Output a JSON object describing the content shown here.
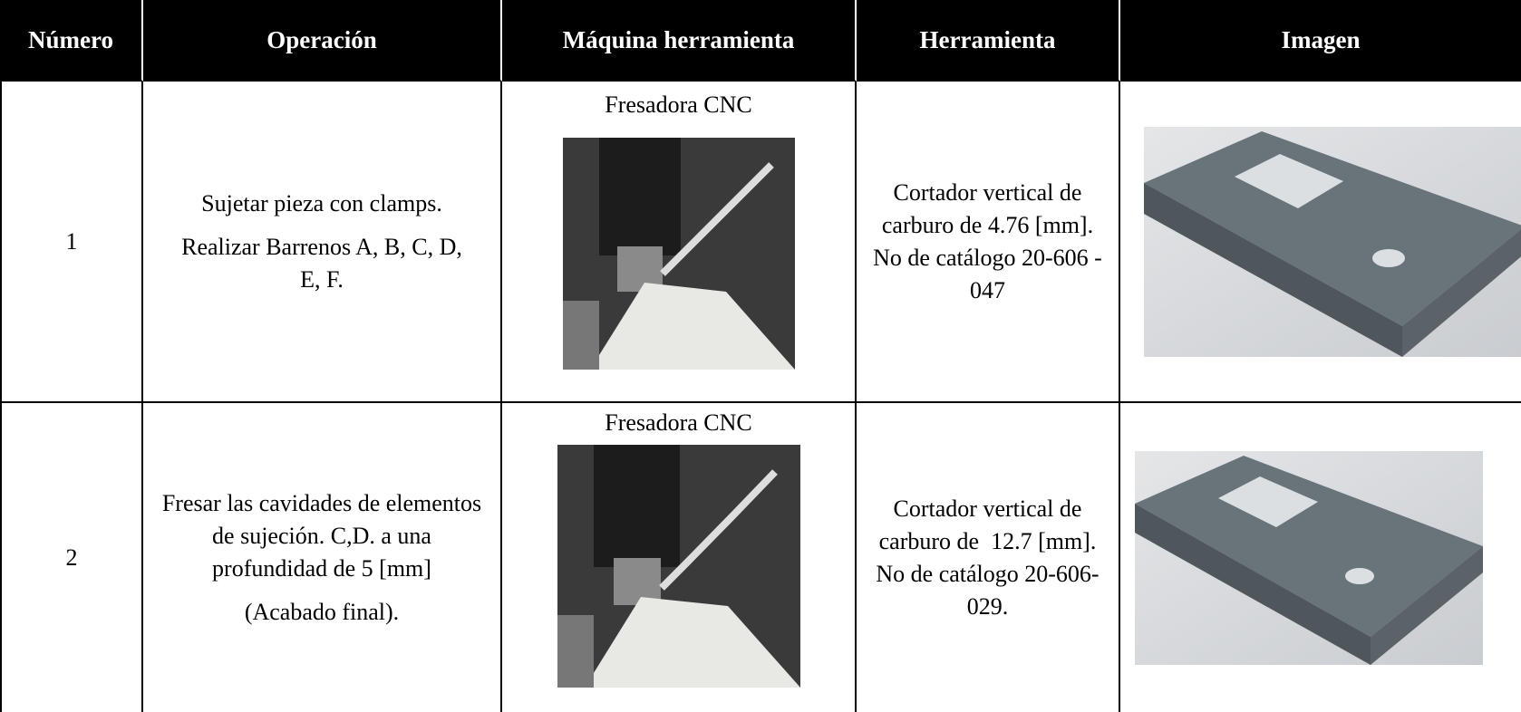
{
  "table": {
    "header": [
      "Número",
      "Operación",
      "Máquina herramienta",
      "Herramienta",
      "Imagen"
    ],
    "rows": [
      {
        "number": "1",
        "operation": [
          "Sujetar pieza con clamps.",
          "Realizar Barrenos A, B, C, D, E, F."
        ],
        "machine": "Fresadora CNC",
        "tool": "Cortador vertical de carburo de 4.76 [mm]. No de catálogo 20-606 - 047"
      },
      {
        "number": "2",
        "operation": [
          "Fresar las cavidades de elementos de sujeción. C,D. a una profundidad de 5 [mm]",
          "(Acabado final)."
        ],
        "machine": "Fresadora CNC",
        "tool": "Cortador vertical de carburo de  12.7 [mm]. No de catálogo 20-606-029."
      }
    ]
  }
}
